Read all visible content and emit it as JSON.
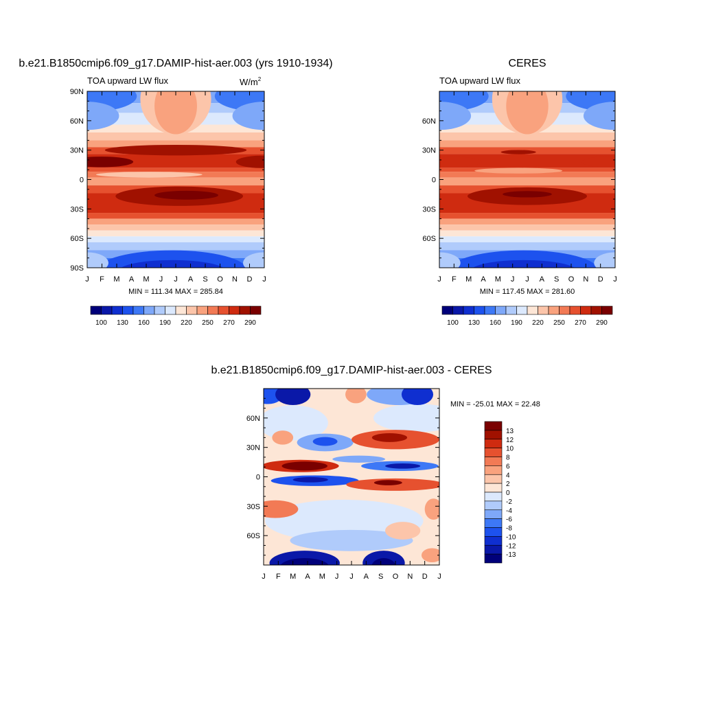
{
  "palette": {
    "fill": [
      "#00007a",
      "#0a18a8",
      "#0f2fd0",
      "#1d52ee",
      "#3d78f6",
      "#7ea8f9",
      "#b0cbfb",
      "#dce9fd",
      "#fde6d6",
      "#fcc5aa",
      "#f9a27e",
      "#f27a55",
      "#e6512f",
      "#cf2b10",
      "#a01100",
      "#7a0000"
    ],
    "stroke": "#000000"
  },
  "top_left": {
    "title": "b.e21.B1850cmip6.f09_g17.DAMIP-hist-aer.003 (yrs 1910-1934)",
    "subtitle_left": "TOA upward LW flux",
    "subtitle_right": "W/m",
    "subtitle_right_sup": "2",
    "stats": "MIN = 111.34 MAX = 285.84",
    "colorbar_labels": [
      "100",
      "130",
      "160",
      "190",
      "220",
      "250",
      "270",
      "290"
    ]
  },
  "top_right": {
    "title": "CERES",
    "subtitle_left": "TOA upward LW flux",
    "stats": "MIN = 117.45 MAX = 281.60",
    "colorbar_labels": [
      "100",
      "130",
      "160",
      "190",
      "220",
      "250",
      "270",
      "290"
    ]
  },
  "bottom": {
    "title": "b.e21.B1850cmip6.f09_g17.DAMIP-hist-aer.003 - CERES",
    "stats": "MIN = -25.01 MAX =  22.48",
    "colorbar_labels": [
      "13",
      "12",
      "10",
      "8",
      "6",
      "4",
      "2",
      "0",
      "-2",
      "-4",
      "-6",
      "-8",
      "-10",
      "-12",
      "-13"
    ]
  },
  "chart_data": [
    {
      "type": "heatmap",
      "name": "model",
      "x_axis": {
        "ticks": [
          "J",
          "F",
          "M",
          "A",
          "M",
          "J",
          "J",
          "A",
          "S",
          "O",
          "N",
          "D",
          "J"
        ],
        "range": [
          0,
          12
        ]
      },
      "y_axis": {
        "ticks": [
          "90N",
          "60N",
          "30N",
          "0",
          "30S",
          "60S",
          "90S"
        ],
        "range": [
          -90,
          90
        ]
      },
      "min": 111.34,
      "max": 285.84,
      "levels": [
        100,
        110,
        120,
        130,
        140,
        150,
        160,
        170,
        180,
        190,
        200,
        210,
        220,
        230,
        240,
        250,
        260,
        270,
        280,
        290
      ],
      "shown_levels": [
        100,
        130,
        160,
        190,
        220,
        250,
        270,
        290
      ]
    },
    {
      "type": "heatmap",
      "name": "ceres",
      "x_axis": {
        "ticks": [
          "J",
          "F",
          "M",
          "A",
          "M",
          "J",
          "J",
          "A",
          "S",
          "O",
          "N",
          "D",
          "J"
        ],
        "range": [
          0,
          12
        ]
      },
      "y_axis": {
        "ticks": [
          "60N",
          "30N",
          "0",
          "30S",
          "60S"
        ],
        "range": [
          -90,
          90
        ]
      },
      "min": 117.45,
      "max": 281.6,
      "levels": [
        100,
        110,
        120,
        130,
        140,
        150,
        160,
        170,
        180,
        190,
        200,
        210,
        220,
        230,
        240,
        250,
        260,
        270,
        280,
        290
      ],
      "shown_levels": [
        100,
        130,
        160,
        190,
        220,
        250,
        270,
        290
      ]
    },
    {
      "type": "heatmap",
      "name": "difference",
      "x_axis": {
        "ticks": [
          "J",
          "F",
          "M",
          "A",
          "M",
          "J",
          "J",
          "A",
          "S",
          "O",
          "N",
          "D",
          "J"
        ],
        "range": [
          0,
          12
        ]
      },
      "y_axis": {
        "ticks": [
          "60N",
          "30N",
          "0",
          "30S",
          "60S"
        ],
        "range": [
          -90,
          90
        ]
      },
      "min": -25.01,
      "max": 22.48,
      "levels": [
        -13,
        -12,
        -10,
        -8,
        -6,
        -4,
        -2,
        0,
        2,
        4,
        6,
        8,
        10,
        12,
        13
      ]
    }
  ]
}
